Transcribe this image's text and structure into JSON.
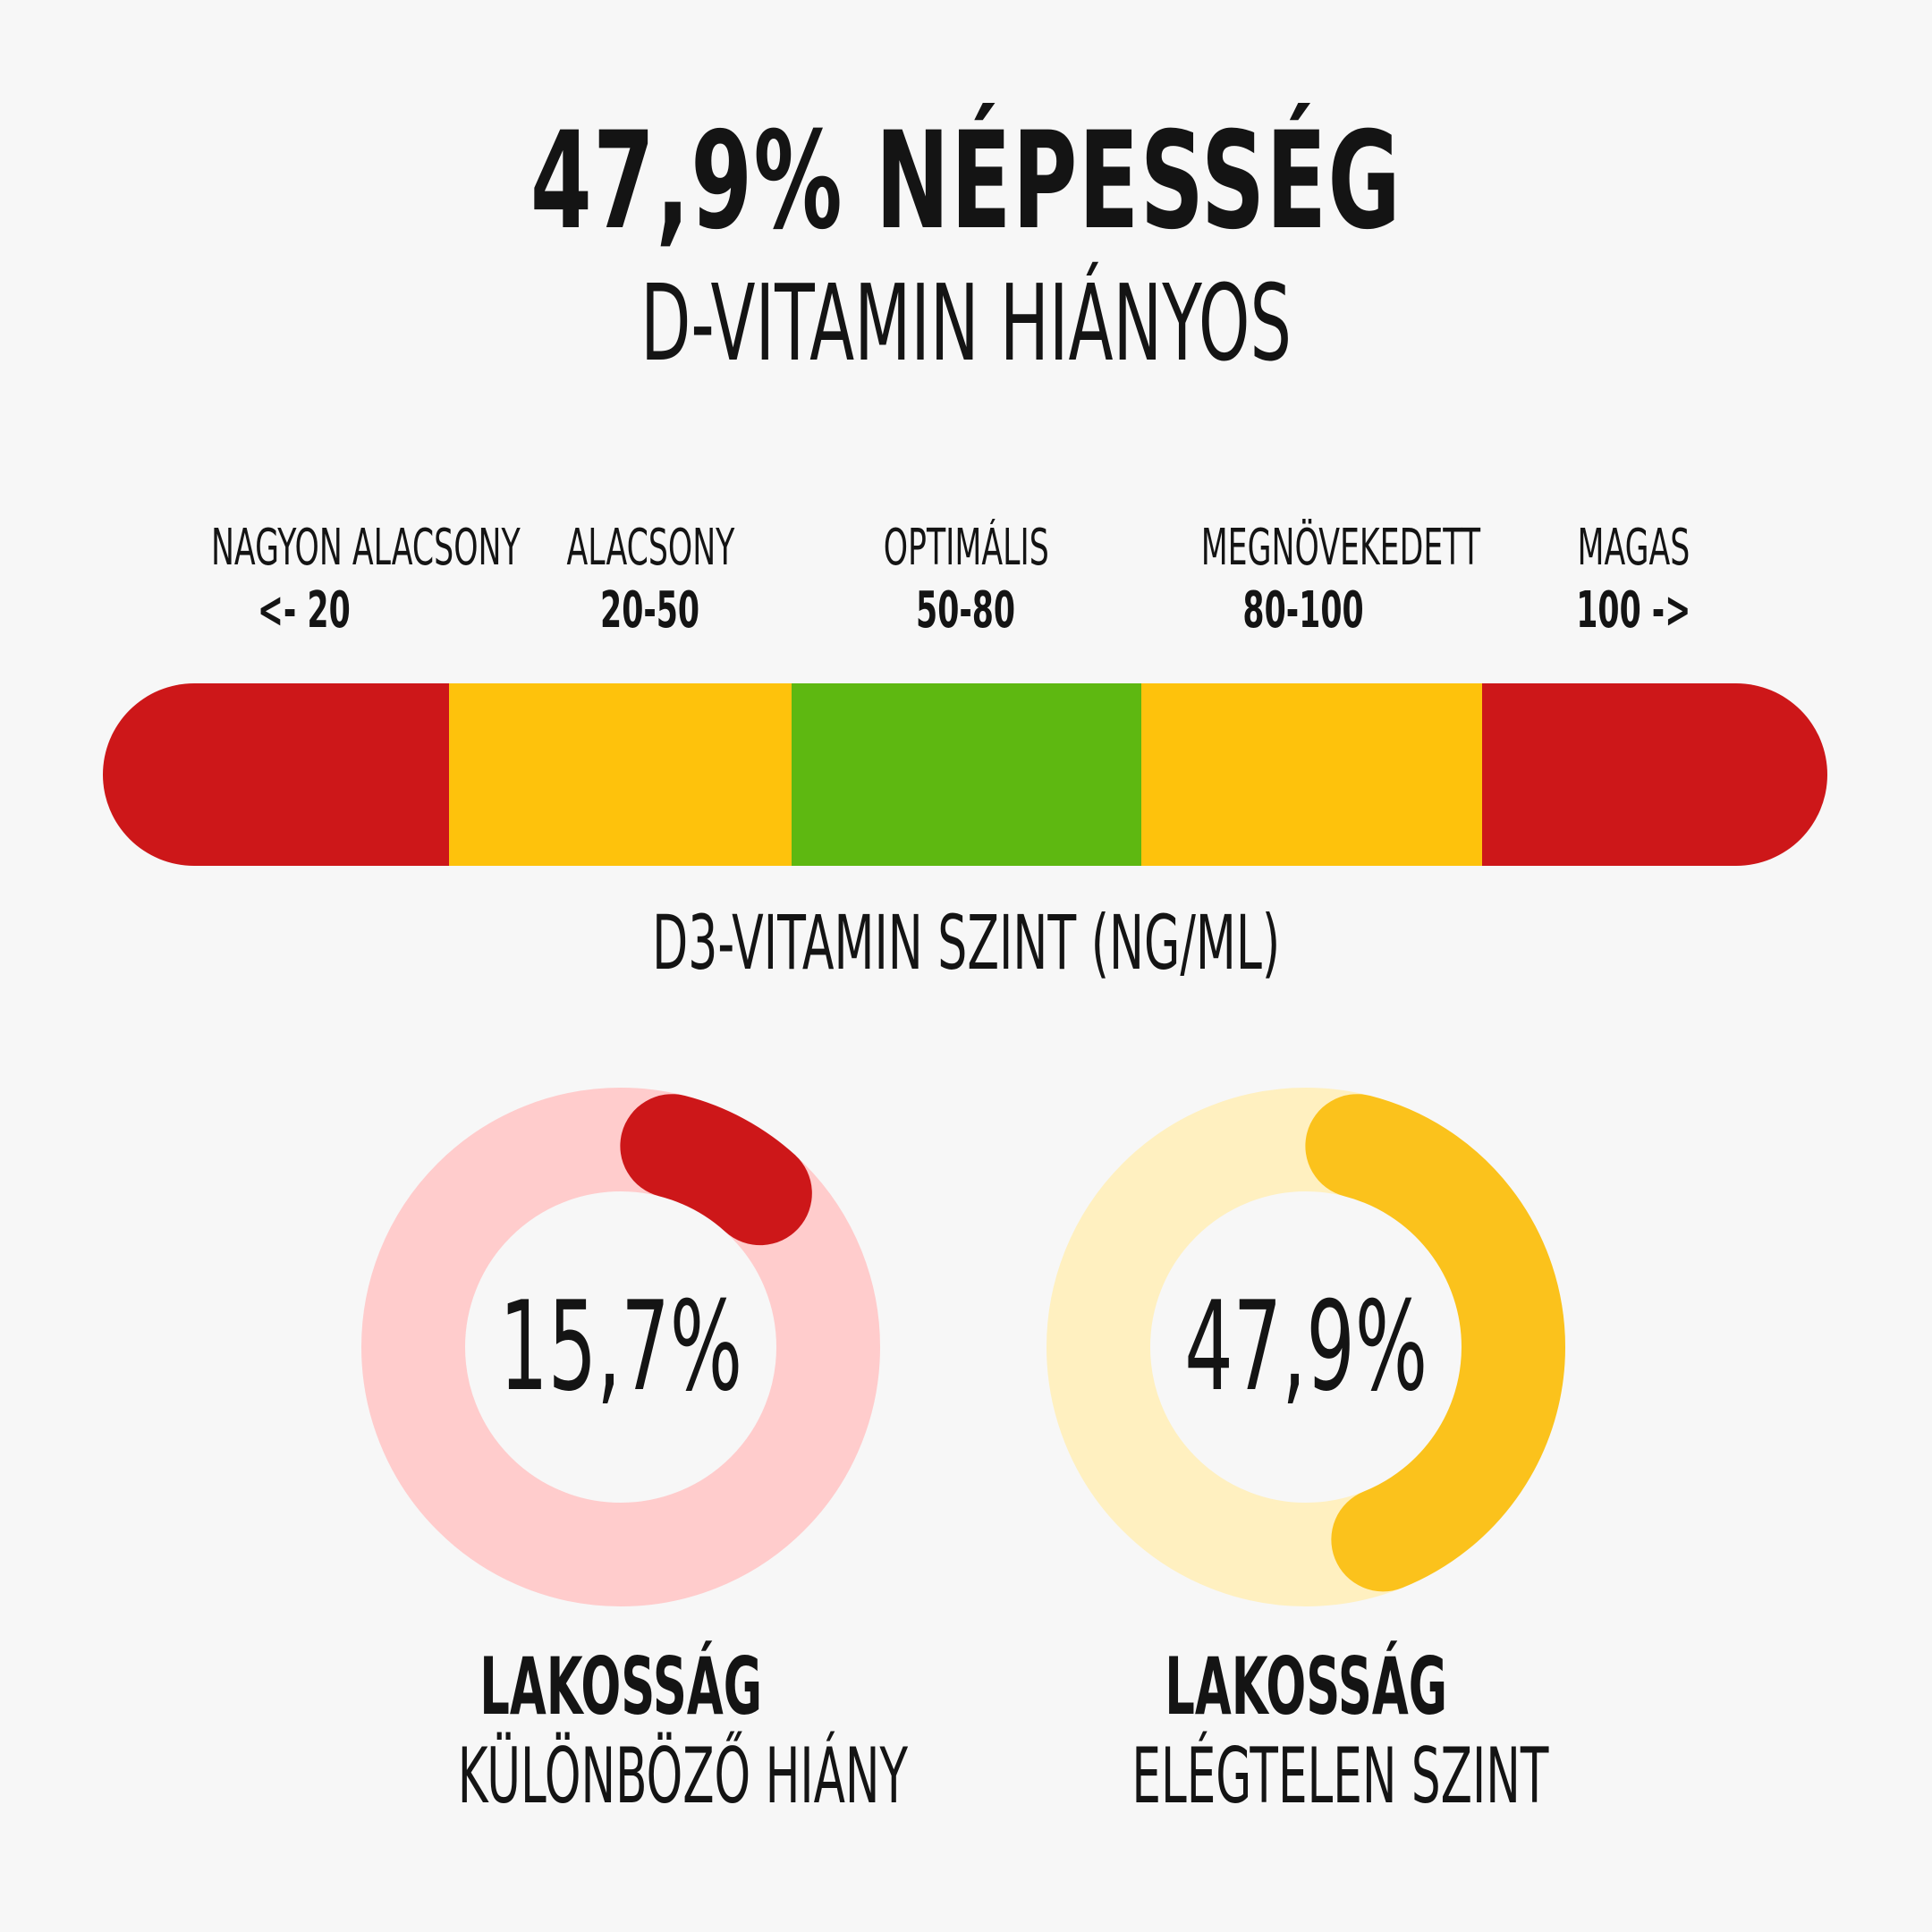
{
  "header": {
    "title": "47,9% NÉPESSÉG",
    "subtitle": "D-VITAMIN HIÁNYOS"
  },
  "scale": {
    "segments": [
      {
        "name": "NAGYON ALACSONY",
        "range": "<- 20",
        "color": "#cd1719"
      },
      {
        "name": "ALACSONY",
        "range": "20-50",
        "color": "#fec20c"
      },
      {
        "name": "OPTIMÁLIS",
        "range": "50-80",
        "color": "#5eb811"
      },
      {
        "name": "MEGNÖVEKEDETT",
        "range": "80-100",
        "color": "#fec20c"
      },
      {
        "name": "MAGAS",
        "range": "100 ->",
        "color": "#cd1719"
      }
    ],
    "axis_title": "D3-VITAMIN SZINT (NG/ML)"
  },
  "donuts": [
    {
      "value_label": "15,7%",
      "fraction": 0.157,
      "arc_color": "#cd1719",
      "track_color": "#ffcccc",
      "caption_bold": "LAKOSSÁG",
      "caption": "KÜLÖNBÖZŐ HIÁNY"
    },
    {
      "value_label": "47,9%",
      "fraction": 0.479,
      "arc_color": "#fbc21c",
      "track_color": "#fff0c0",
      "caption_bold": "LAKOSSÁG",
      "caption": "ELÉGTELEN SZINT"
    }
  ]
}
